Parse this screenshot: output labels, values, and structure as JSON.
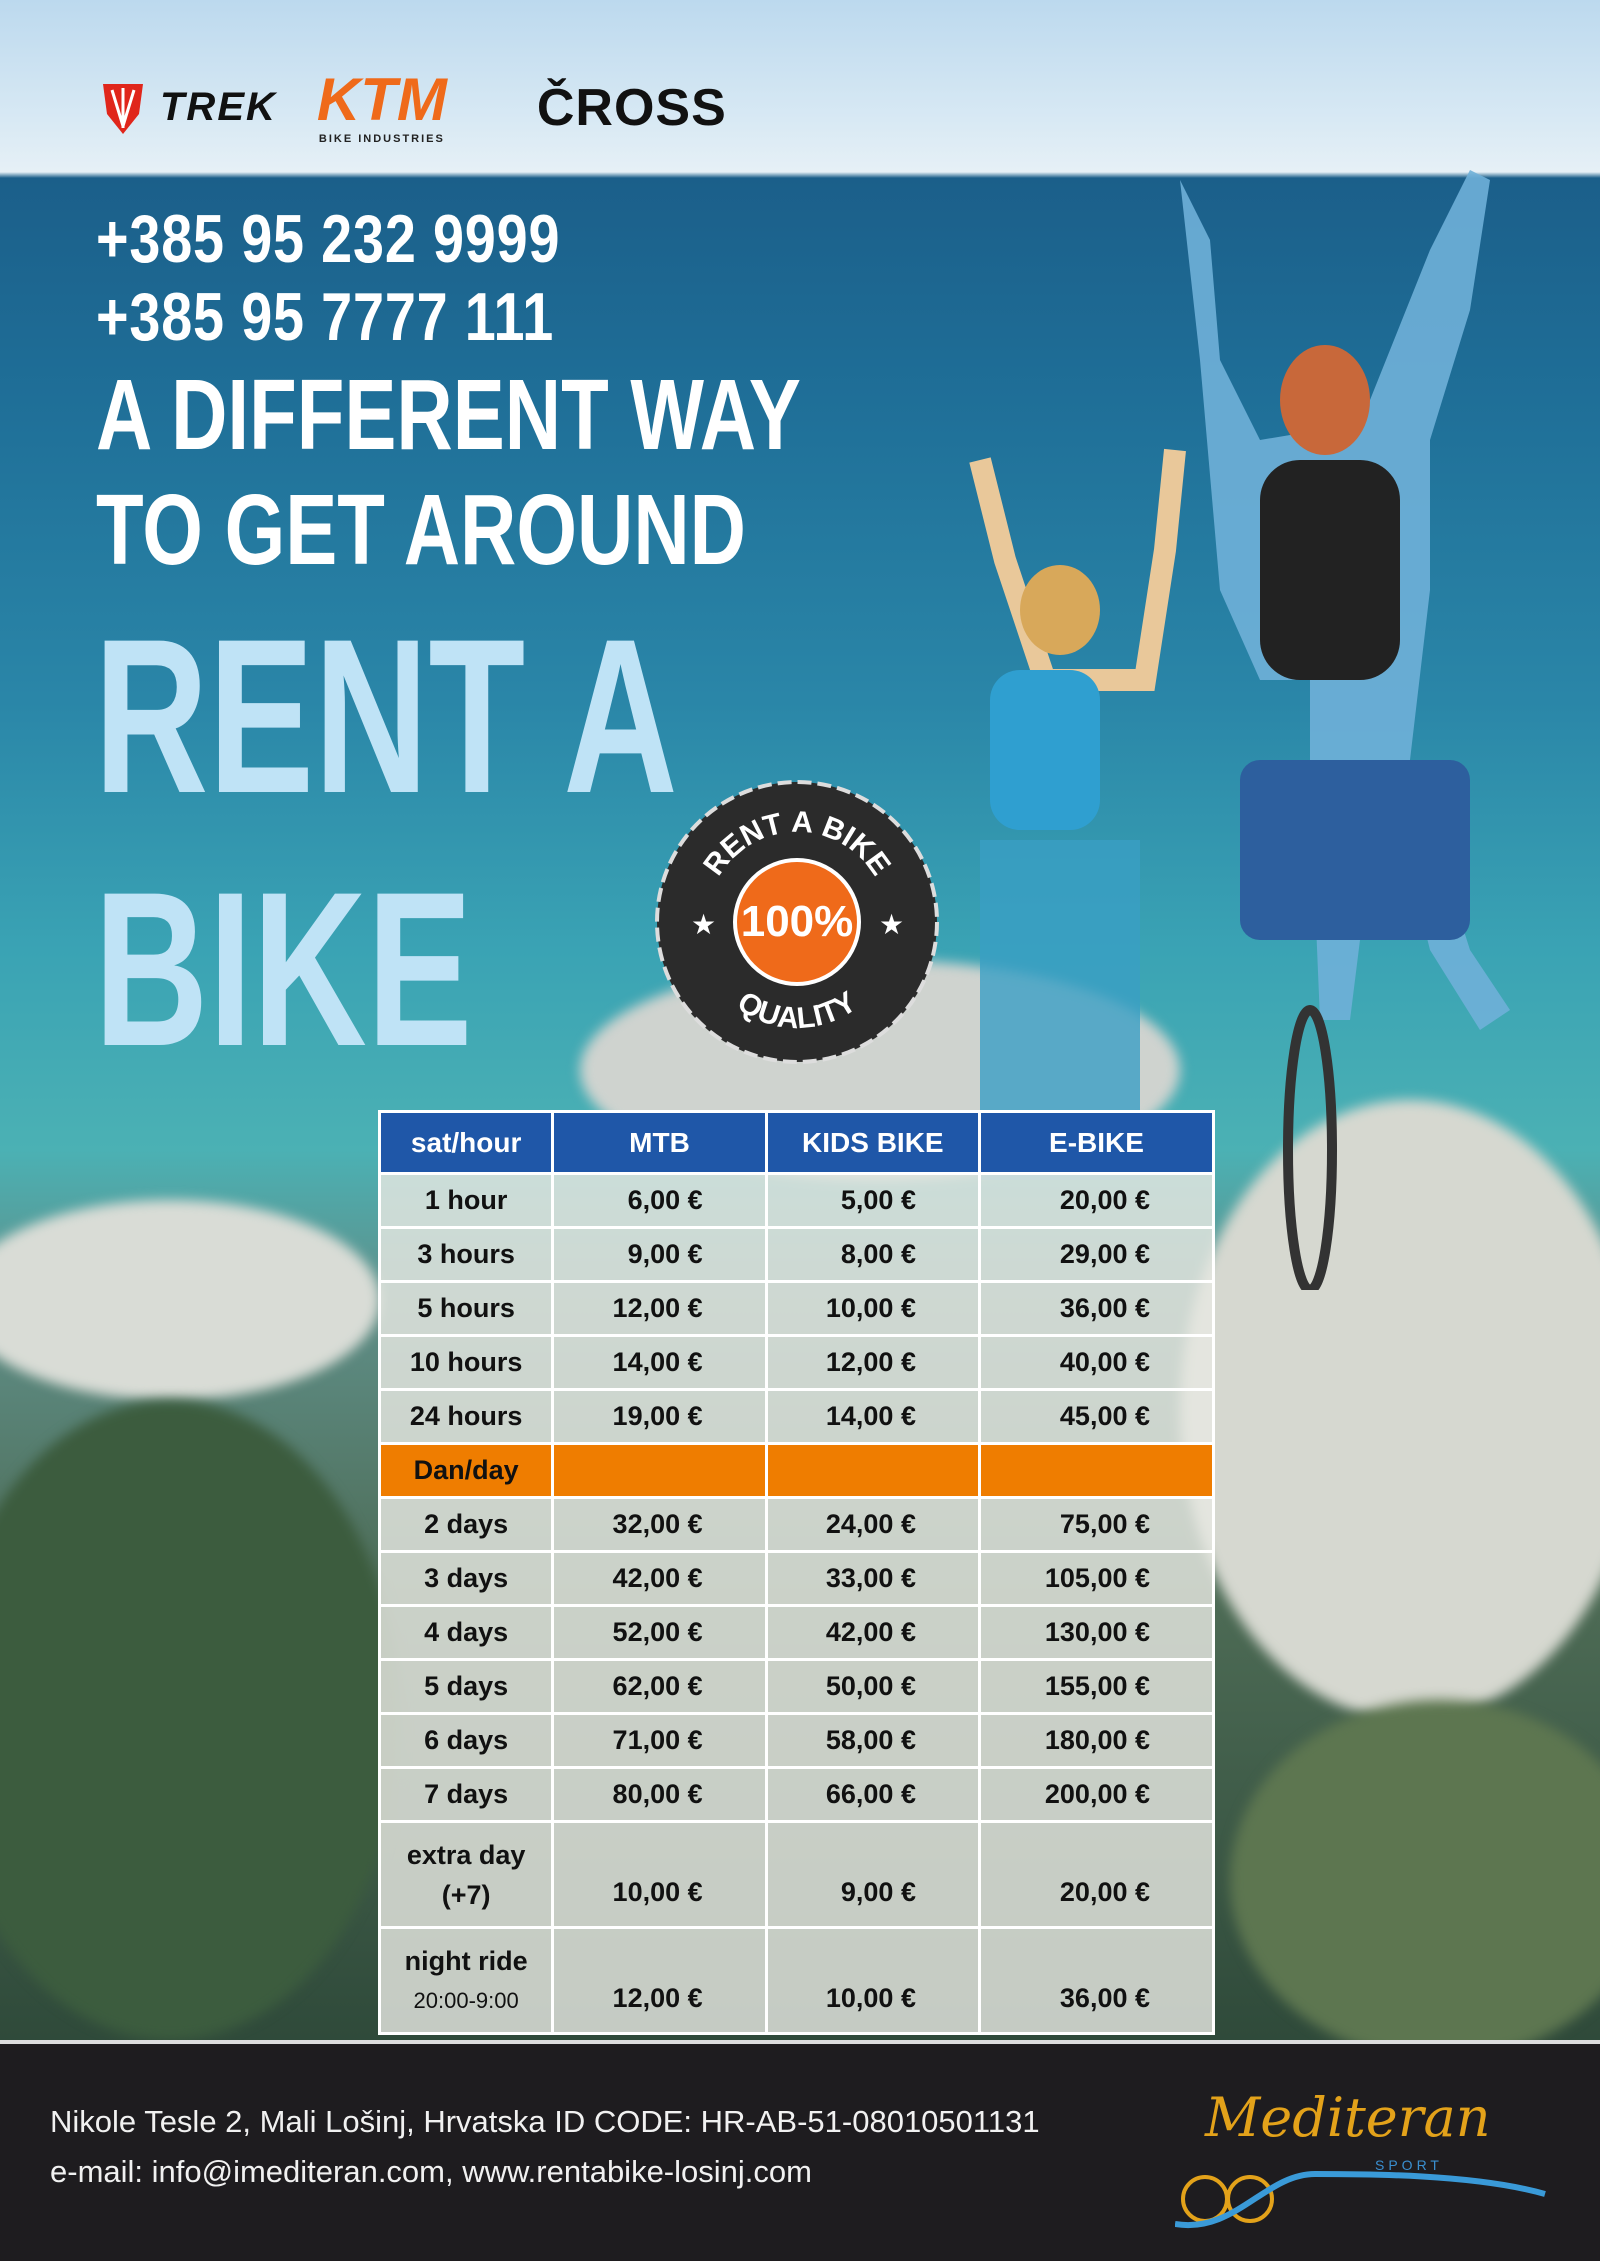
{
  "brands": {
    "trek": "TREK",
    "ktm": "KTM",
    "ktm_sub": "BIKE INDUSTRIES",
    "cross": "ČROSS"
  },
  "phones": [
    "+385 95 232 9999",
    "+385 95 7777 111"
  ],
  "slogan": [
    "A DIFFERENT WAY",
    "TO GET AROUND"
  ],
  "headline": [
    "RENT A",
    "BIKE"
  ],
  "badge": {
    "top": "RENT A BIKE",
    "center": "100%",
    "bottom": "QUALITY"
  },
  "table": {
    "headers": [
      "sat/hour",
      "MTB",
      "KIDS BIKE",
      "E-BIKE"
    ],
    "hour_rows": [
      [
        "1 hour",
        "6,00 €",
        "5,00 €",
        "20,00 €"
      ],
      [
        "3 hours",
        "9,00 €",
        "8,00 €",
        "29,00 €"
      ],
      [
        "5 hours",
        "12,00 €",
        "10,00 €",
        "36,00 €"
      ],
      [
        "10 hours",
        "14,00 €",
        "12,00 €",
        "40,00 €"
      ],
      [
        "24 hours",
        "19,00 €",
        "14,00 €",
        "45,00 €"
      ]
    ],
    "day_section": "Dan/day",
    "day_rows": [
      [
        "2 days",
        "32,00 €",
        "24,00 €",
        "75,00 €"
      ],
      [
        "3 days",
        "42,00 €",
        "33,00 €",
        "105,00 €"
      ],
      [
        "4 days",
        "52,00 €",
        "42,00 €",
        "130,00 €"
      ],
      [
        "5 days",
        "62,00 €",
        "50,00 €",
        "155,00 €"
      ],
      [
        "6 days",
        "71,00 €",
        "58,00 €",
        "180,00 €"
      ],
      [
        "7 days",
        "80,00 €",
        "66,00 €",
        "200,00 €"
      ]
    ],
    "extra": {
      "label1": "extra day",
      "label2": "(+7)",
      "values": [
        "10,00 €",
        "9,00 €",
        "20,00 €"
      ]
    },
    "night": {
      "label1": "night ride",
      "label2": "20:00-9:00",
      "values": [
        "12,00 €",
        "10,00 €",
        "36,00 €"
      ]
    }
  },
  "colors": {
    "header": "#1f57a8",
    "section": "#ef7d00",
    "footer": "#1e1c1f",
    "headline": "#bfe3f6"
  },
  "footer": {
    "line1": "Nikole Tesle 2, Mali Lošinj, Hrvatska ID CODE: HR-AB-51-08010501131",
    "line2": "e-mail: info@imediteran.com, www.rentabike-losinj.com",
    "logo": "Mediteran",
    "logo_sub": "SPORT"
  }
}
